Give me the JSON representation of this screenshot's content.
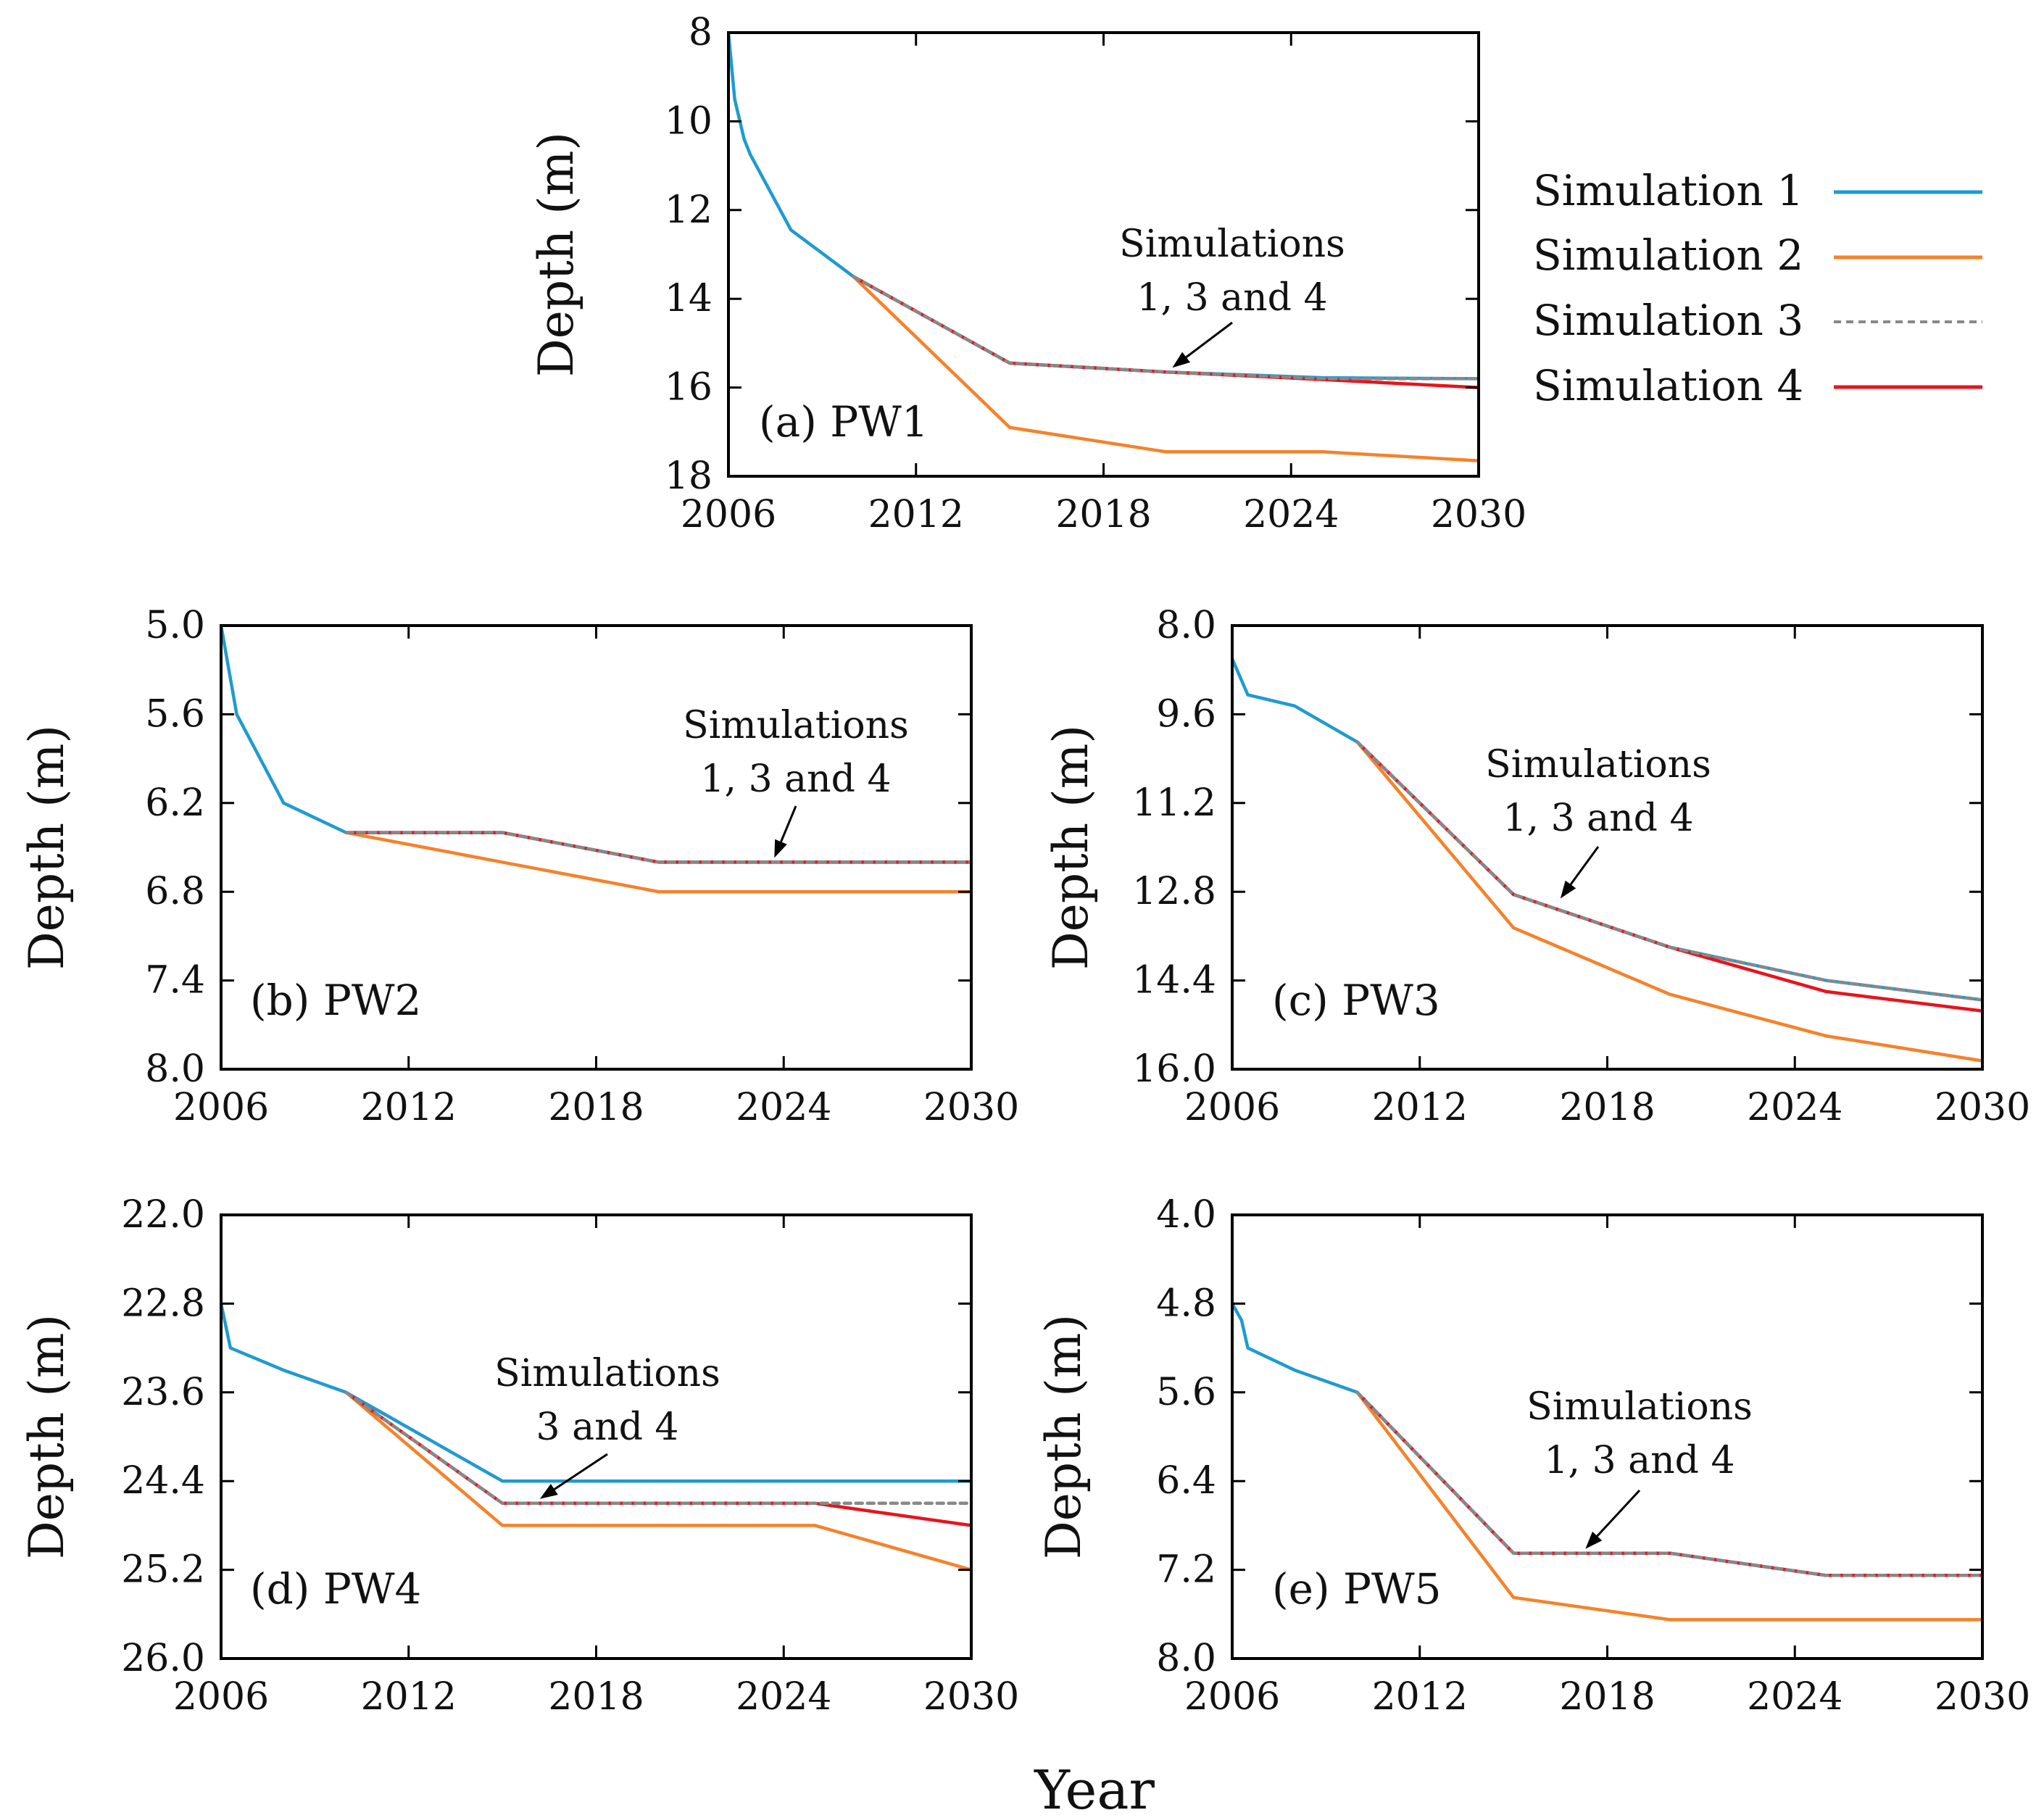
{
  "colors": {
    "sim1": "#1f9bd0",
    "sim2": "#f5822a",
    "sim3": "#888888",
    "sim4": "#e8141c"
  },
  "legend": {
    "entries": [
      {
        "label": "Simulation 1",
        "series": "sim1"
      },
      {
        "label": "Simulation 2",
        "series": "sim2"
      },
      {
        "label": "Simulation 3",
        "series": "sim3"
      },
      {
        "label": "Simulation 4",
        "series": "sim4"
      }
    ]
  },
  "figure": {
    "xlabel": "Year"
  },
  "chart_data": [
    {
      "type": "line",
      "panel_label": "(a) PW1",
      "ylabel": "Depth (m)",
      "xlim": [
        2006,
        2030
      ],
      "ylim": [
        8,
        18
      ],
      "y_inverted": true,
      "xticks": [
        "2006",
        "2012",
        "2018",
        "2024",
        "2030"
      ],
      "yticks": [
        "8",
        "10",
        "12",
        "14",
        "16",
        "18"
      ],
      "annotation": {
        "line1": "Simulations",
        "line2": "1, 3 and 4",
        "arrow_to": [
          2020.2,
          15.65
        ]
      },
      "series": [
        {
          "name": "Simulation 1",
          "key": "sim1",
          "x": [
            2006,
            2006.2,
            2006.5,
            2006.7,
            2008,
            2010,
            2015,
            2020,
            2025,
            2030
          ],
          "y": [
            8,
            9.5,
            10.4,
            10.75,
            12.45,
            13.5,
            15.45,
            15.65,
            15.78,
            15.8
          ]
        },
        {
          "name": "Simulation 2",
          "key": "sim2",
          "x": [
            2010,
            2015,
            2020,
            2025,
            2030
          ],
          "y": [
            13.5,
            16.9,
            17.45,
            17.45,
            17.65
          ]
        },
        {
          "name": "Simulation 3",
          "key": "sim3",
          "x": [
            2010,
            2015,
            2020,
            2025,
            2030
          ],
          "y": [
            13.5,
            15.45,
            15.65,
            15.8,
            15.8
          ]
        },
        {
          "name": "Simulation 4",
          "key": "sim4",
          "x": [
            2010,
            2015,
            2020,
            2025,
            2030
          ],
          "y": [
            13.5,
            15.45,
            15.65,
            15.82,
            16.0
          ]
        }
      ]
    },
    {
      "type": "line",
      "panel_label": "(b) PW2",
      "ylabel": "Depth (m)",
      "xlim": [
        2006,
        2030
      ],
      "ylim": [
        5.0,
        8.0
      ],
      "y_inverted": true,
      "xticks": [
        "2006",
        "2012",
        "2018",
        "2024",
        "2030"
      ],
      "yticks": [
        "5.0",
        "5.6",
        "6.2",
        "6.8",
        "7.4",
        "8.0"
      ],
      "annotation": {
        "line1": "Simulations",
        "line2": "1, 3 and 4",
        "arrow_to": [
          2023.7,
          6.6
        ]
      },
      "series": [
        {
          "name": "Simulation 1",
          "key": "sim1",
          "x": [
            2006,
            2006.5,
            2008,
            2010,
            2015,
            2020,
            2025,
            2030
          ],
          "y": [
            5.0,
            5.6,
            6.2,
            6.4,
            6.4,
            6.6,
            6.6,
            6.6
          ]
        },
        {
          "name": "Simulation 2",
          "key": "sim2",
          "x": [
            2010,
            2015,
            2020,
            2025,
            2030
          ],
          "y": [
            6.4,
            6.6,
            6.8,
            6.8,
            6.8
          ]
        },
        {
          "name": "Simulation 3",
          "key": "sim3",
          "x": [
            2010,
            2015,
            2020,
            2025,
            2030
          ],
          "y": [
            6.4,
            6.4,
            6.6,
            6.6,
            6.6
          ]
        },
        {
          "name": "Simulation 4",
          "key": "sim4",
          "x": [
            2010,
            2015,
            2020,
            2025,
            2030
          ],
          "y": [
            6.4,
            6.4,
            6.6,
            6.6,
            6.6
          ]
        }
      ]
    },
    {
      "type": "line",
      "panel_label": "(c) PW3",
      "ylabel": "Depth (m)",
      "xlim": [
        2006,
        2030
      ],
      "ylim": [
        8.0,
        16.0
      ],
      "y_inverted": true,
      "xticks": [
        "2006",
        "2012",
        "2018",
        "2024",
        "2030"
      ],
      "yticks": [
        "8.0",
        "9.6",
        "11.2",
        "12.8",
        "14.4",
        "16.0"
      ],
      "annotation": {
        "line1": "Simulations",
        "line2": "1, 3 and 4",
        "arrow_to": [
          2016.5,
          13.0
        ]
      },
      "series": [
        {
          "name": "Simulation 1",
          "key": "sim1",
          "x": [
            2006,
            2006.5,
            2008,
            2010,
            2015,
            2020,
            2025,
            2030
          ],
          "y": [
            8.6,
            9.25,
            9.45,
            10.1,
            12.85,
            13.8,
            14.4,
            14.75
          ]
        },
        {
          "name": "Simulation 2",
          "key": "sim2",
          "x": [
            2010,
            2015,
            2020,
            2025,
            2030
          ],
          "y": [
            10.1,
            13.45,
            14.65,
            15.4,
            15.85
          ]
        },
        {
          "name": "Simulation 3",
          "key": "sim3",
          "x": [
            2010,
            2015,
            2020,
            2025,
            2030
          ],
          "y": [
            10.1,
            12.85,
            13.8,
            14.4,
            14.75
          ]
        },
        {
          "name": "Simulation 4",
          "key": "sim4",
          "x": [
            2010,
            2015,
            2020,
            2025,
            2030
          ],
          "y": [
            10.1,
            12.85,
            13.8,
            14.6,
            14.95
          ]
        }
      ]
    },
    {
      "type": "line",
      "panel_label": "(d) PW4",
      "ylabel": "Depth (m)",
      "xlim": [
        2006,
        2030
      ],
      "ylim": [
        22.0,
        26.0
      ],
      "y_inverted": true,
      "xticks": [
        "2006",
        "2012",
        "2018",
        "2024",
        "2030"
      ],
      "yticks": [
        "22.0",
        "22.8",
        "23.6",
        "24.4",
        "25.2",
        "26.0"
      ],
      "annotation": {
        "line1": "Simulations",
        "line2": "3 and 4",
        "arrow_to": [
          2016.2,
          24.6
        ]
      },
      "series": [
        {
          "name": "Simulation 1",
          "key": "sim1",
          "x": [
            2006,
            2006.3,
            2008,
            2010,
            2015,
            2020,
            2025,
            2030
          ],
          "y": [
            22.8,
            23.2,
            23.4,
            23.6,
            24.4,
            24.4,
            24.4,
            24.4
          ]
        },
        {
          "name": "Simulation 2",
          "key": "sim2",
          "x": [
            2010,
            2015,
            2020,
            2025,
            2030
          ],
          "y": [
            23.6,
            24.8,
            24.8,
            24.8,
            25.2
          ]
        },
        {
          "name": "Simulation 3",
          "key": "sim3",
          "x": [
            2010,
            2015,
            2020,
            2025,
            2030
          ],
          "y": [
            23.6,
            24.6,
            24.6,
            24.6,
            24.6
          ]
        },
        {
          "name": "Simulation 4",
          "key": "sim4",
          "x": [
            2010,
            2015,
            2020,
            2025,
            2030
          ],
          "y": [
            23.6,
            24.6,
            24.6,
            24.6,
            24.8
          ]
        }
      ]
    },
    {
      "type": "line",
      "panel_label": "(e) PW5",
      "ylabel": "Depth (m)",
      "xlim": [
        2006,
        2030
      ],
      "ylim": [
        4.0,
        8.0
      ],
      "y_inverted": true,
      "xticks": [
        "2006",
        "2012",
        "2018",
        "2024",
        "2030"
      ],
      "yticks": [
        "4.0",
        "4.8",
        "5.6",
        "6.4",
        "7.2",
        "8.0"
      ],
      "annotation": {
        "line1": "Simulations",
        "line2": "1, 3 and 4",
        "arrow_to": [
          2017.3,
          7.05
        ]
      },
      "series": [
        {
          "name": "Simulation 1",
          "key": "sim1",
          "x": [
            2006,
            2006.3,
            2006.5,
            2008,
            2010,
            2015,
            2020,
            2025,
            2030
          ],
          "y": [
            4.8,
            4.95,
            5.2,
            5.4,
            5.6,
            7.05,
            7.05,
            7.25,
            7.25
          ]
        },
        {
          "name": "Simulation 2",
          "key": "sim2",
          "x": [
            2010,
            2015,
            2020,
            2025,
            2030
          ],
          "y": [
            5.6,
            7.45,
            7.65,
            7.65,
            7.65
          ]
        },
        {
          "name": "Simulation 3",
          "key": "sim3",
          "x": [
            2010,
            2015,
            2020,
            2025,
            2030
          ],
          "y": [
            5.6,
            7.05,
            7.05,
            7.25,
            7.25
          ]
        },
        {
          "name": "Simulation 4",
          "key": "sim4",
          "x": [
            2010,
            2015,
            2020,
            2025,
            2030
          ],
          "y": [
            5.6,
            7.05,
            7.05,
            7.25,
            7.25
          ]
        }
      ]
    }
  ]
}
